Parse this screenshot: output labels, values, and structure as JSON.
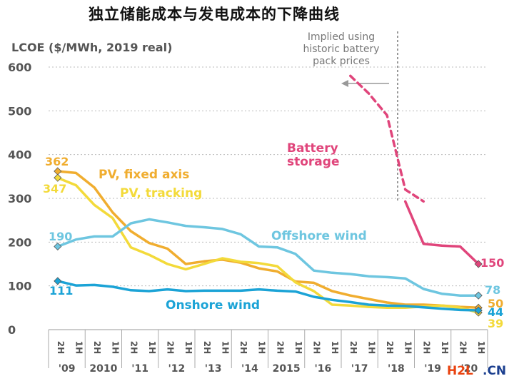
{
  "page_title": "独立储能成本与发电成本的下降曲线",
  "watermark": {
    "h2l": "H2L",
    "cn": ".CN"
  },
  "chart_data": {
    "type": "line",
    "ylabel": "LCOE ($/MWh, 2019 real)",
    "ylim": [
      0,
      600
    ],
    "yticks": [
      0,
      100,
      200,
      300,
      400,
      500,
      600
    ],
    "grid": true,
    "x": [
      "2H",
      "1H",
      "2H",
      "1H",
      "2H",
      "1H",
      "2H",
      "1H",
      "2H",
      "1H",
      "2H",
      "1H",
      "2H",
      "1H",
      "2H",
      "1H",
      "2H",
      "1H",
      "2H",
      "1H",
      "2H",
      "1H",
      "2H",
      "1H"
    ],
    "year_labels": [
      "'09",
      "2010",
      "'11",
      "'12",
      "'13",
      "'14",
      "2015",
      "'16",
      "'17",
      "'18",
      "'19",
      "'20"
    ],
    "series": [
      {
        "name": "Battery storage",
        "color": "#e0457b",
        "values": [
          null,
          null,
          null,
          null,
          null,
          null,
          null,
          null,
          null,
          null,
          null,
          null,
          null,
          null,
          null,
          null,
          null,
          null,
          null,
          293,
          196,
          192,
          190,
          150
        ]
      },
      {
        "name": "Battery storage (implied using historic battery pack prices)",
        "color": "#e0457b",
        "values": [
          null,
          null,
          null,
          null,
          null,
          null,
          null,
          null,
          null,
          null,
          null,
          null,
          null,
          null,
          null,
          null,
          580,
          540,
          490,
          320,
          293,
          null,
          null,
          null
        ]
      },
      {
        "name": "PV, fixed axis",
        "color": "#f0ad2f",
        "values": [
          362,
          358,
          325,
          268,
          225,
          198,
          185,
          150,
          156,
          160,
          153,
          140,
          133,
          110,
          107,
          88,
          78,
          70,
          62,
          57,
          57,
          55,
          52,
          50
        ]
      },
      {
        "name": "PV, tracking",
        "color": "#f3da3a",
        "values": [
          347,
          330,
          285,
          255,
          188,
          171,
          150,
          138,
          150,
          163,
          155,
          152,
          145,
          108,
          88,
          57,
          55,
          52,
          50,
          50,
          53,
          55,
          50,
          39
        ]
      },
      {
        "name": "Offshore wind",
        "color": "#6ec6e0",
        "values": [
          190,
          206,
          213,
          213,
          243,
          252,
          245,
          237,
          234,
          230,
          218,
          190,
          188,
          173,
          135,
          130,
          127,
          122,
          120,
          117,
          93,
          82,
          78,
          78
        ]
      },
      {
        "name": "Onshore wind",
        "color": "#1ba3d6",
        "values": [
          111,
          101,
          102,
          98,
          90,
          88,
          92,
          88,
          89,
          89,
          89,
          92,
          89,
          87,
          75,
          68,
          63,
          57,
          55,
          54,
          51,
          48,
          45,
          44
        ]
      }
    ],
    "data_labels": [
      {
        "text": "362",
        "color": "#f0ad2f"
      },
      {
        "text": "347",
        "color": "#f3da3a"
      },
      {
        "text": "190",
        "color": "#6ec6e0"
      },
      {
        "text": "111",
        "color": "#1ba3d6"
      },
      {
        "text": "150",
        "color": "#e0457b"
      },
      {
        "text": "78",
        "color": "#6ec6e0"
      },
      {
        "text": "50",
        "color": "#f0ad2f"
      },
      {
        "text": "44",
        "color": "#1ba3d6"
      },
      {
        "text": "39",
        "color": "#f3da3a"
      }
    ],
    "series_labels": [
      {
        "text": "PV, fixed axis",
        "color": "#f0ad2f"
      },
      {
        "text": "PV, tracking",
        "color": "#f3da3a"
      },
      {
        "text": "Offshore wind",
        "color": "#6ec6e0"
      },
      {
        "text": "Onshore wind",
        "color": "#1ba3d6"
      },
      {
        "text": "Battery",
        "color": "#e0457b"
      },
      {
        "text": "storage",
        "color": "#e0457b"
      }
    ],
    "annotation": [
      "Implied using",
      "historic battery",
      "pack prices"
    ]
  }
}
